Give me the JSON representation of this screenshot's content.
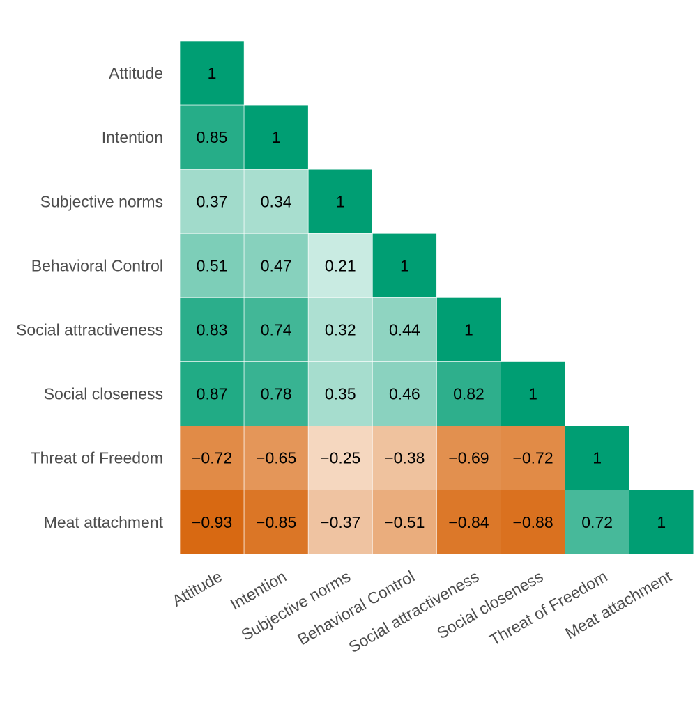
{
  "chart_data": {
    "type": "heatmap",
    "title": "",
    "xlabel": "",
    "ylabel": "",
    "variables": [
      "Attitude",
      "Intention",
      "Subjective norms",
      "Behavioral Control",
      "Social attractiveness",
      "Social closeness",
      "Threat of Freedom",
      "Meat attachment"
    ],
    "matrix_lower": [
      [
        1
      ],
      [
        0.85,
        1
      ],
      [
        0.37,
        0.34,
        1
      ],
      [
        0.51,
        0.47,
        0.21,
        1
      ],
      [
        0.83,
        0.74,
        0.32,
        0.44,
        1
      ],
      [
        0.87,
        0.78,
        0.35,
        0.46,
        0.82,
        1
      ],
      [
        -0.72,
        -0.65,
        -0.25,
        -0.38,
        -0.69,
        -0.72,
        1
      ],
      [
        -0.93,
        -0.85,
        -0.37,
        -0.51,
        -0.84,
        -0.88,
        0.72,
        1
      ]
    ],
    "color_scale": {
      "positive": "#009E73",
      "negative": "#D55E00",
      "zero": "#ffffff",
      "range": [
        -1,
        1
      ]
    },
    "grid": false
  }
}
